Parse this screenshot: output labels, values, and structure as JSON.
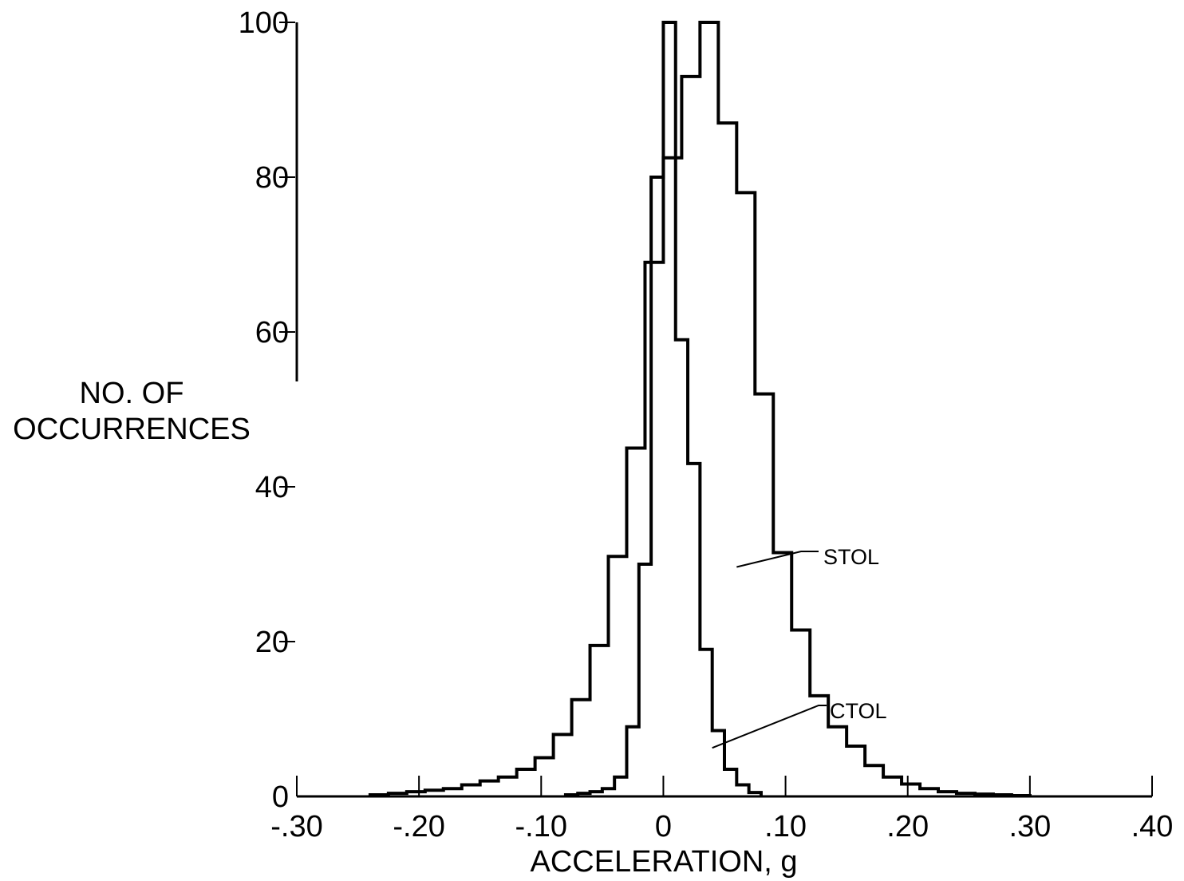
{
  "chart_data": {
    "type": "line",
    "title": "",
    "xlabel": "ACCELERATION, g",
    "ylabel_lines": [
      "NO. OF",
      "OCCURRENCES"
    ],
    "xlim": [
      -0.3,
      0.4
    ],
    "ylim": [
      0,
      100
    ],
    "x_ticks": [
      -0.3,
      -0.2,
      -0.1,
      0,
      0.1,
      0.2,
      0.3,
      0.4
    ],
    "x_tick_labels": [
      "-.30",
      "-.20",
      "-.10",
      "0",
      ".10",
      ".20",
      ".30",
      ".40"
    ],
    "y_ticks": [
      0,
      20,
      40,
      60,
      80,
      100
    ],
    "y_tick_labels": [
      "0",
      "20",
      "40",
      "60",
      "80",
      "100"
    ],
    "grid": false,
    "legend": "none",
    "bin_width": 0.015,
    "series": [
      {
        "name": "STOL",
        "style": "step",
        "bin_edges": [
          -0.24,
          -0.225,
          -0.21,
          -0.195,
          -0.18,
          -0.165,
          -0.15,
          -0.135,
          -0.12,
          -0.105,
          -0.09,
          -0.075,
          -0.06,
          -0.045,
          -0.03,
          -0.015,
          0,
          0.015,
          0.03,
          0.045,
          0.06,
          0.075,
          0.09,
          0.105,
          0.12,
          0.135,
          0.15,
          0.165,
          0.18,
          0.195,
          0.21,
          0.225,
          0.24,
          0.255,
          0.27,
          0.285,
          0.3
        ],
        "values": [
          0.2,
          0.4,
          0.6,
          0.8,
          1.0,
          1.5,
          2.0,
          2.5,
          3.5,
          5.0,
          8.0,
          12.5,
          19.5,
          31,
          45,
          69,
          82.5,
          93,
          100,
          87,
          78,
          52,
          31.5,
          21.5,
          13,
          9,
          6.5,
          4,
          2.5,
          1.6,
          1.0,
          0.6,
          0.4,
          0.3,
          0.2,
          0.1
        ]
      },
      {
        "name": "CTOL",
        "style": "step",
        "bin_edges": [
          -0.08,
          -0.07,
          -0.06,
          -0.05,
          -0.04,
          -0.03,
          -0.02,
          -0.01,
          0,
          0.01,
          0.02,
          0.03,
          0.04,
          0.05,
          0.06,
          0.07,
          0.08
        ],
        "values": [
          0.2,
          0.4,
          0.6,
          1.0,
          2.5,
          9,
          30,
          80,
          100,
          59,
          43,
          19,
          8.5,
          3.5,
          1.5,
          0.5
        ]
      }
    ],
    "annotations": [
      {
        "text": "STOL",
        "points_to_series": "STOL"
      },
      {
        "text": "CTOL",
        "points_to_series": "CTOL"
      }
    ]
  }
}
